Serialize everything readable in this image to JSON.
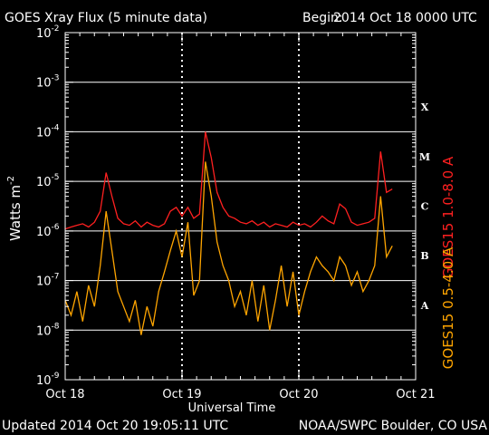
{
  "header": {
    "title": "GOES Xray Flux (5 minute data)",
    "begin_label": "Begin:",
    "begin_value": "2014 Oct 18 0000 UTC"
  },
  "footer": {
    "updated": "Updated 2014 Oct 20 19:05:11 UTC",
    "credit": "NOAA/SWPC Boulder, CO USA"
  },
  "chart_data": {
    "type": "line",
    "title": "GOES Xray Flux (5 minute data)",
    "xlabel": "Universal Time",
    "ylabel": "Watts m",
    "ylabel_sup": "-2",
    "xlim": [
      0,
      3
    ],
    "x_unit": "days since 2014 Oct 18 00:00 UTC",
    "ylim": [
      1e-09,
      0.01
    ],
    "yscale": "log",
    "y_ticks": [
      {
        "base": "10",
        "exp": "-2",
        "value": 0.01
      },
      {
        "base": "10",
        "exp": "-3",
        "value": 0.001
      },
      {
        "base": "10",
        "exp": "-4",
        "value": 0.0001
      },
      {
        "base": "10",
        "exp": "-5",
        "value": 1e-05
      },
      {
        "base": "10",
        "exp": "-6",
        "value": 1e-06
      },
      {
        "base": "10",
        "exp": "-7",
        "value": 1e-07
      },
      {
        "base": "10",
        "exp": "-8",
        "value": 1e-08
      },
      {
        "base": "10",
        "exp": "-9",
        "value": 1e-09
      }
    ],
    "x_ticks": [
      {
        "label": "Oct 18",
        "value": 0
      },
      {
        "label": "Oct 19",
        "value": 1
      },
      {
        "label": "Oct 20",
        "value": 2
      },
      {
        "label": "Oct 21",
        "value": 3
      }
    ],
    "flare_classes": [
      {
        "label": "X",
        "value": 0.000316
      },
      {
        "label": "M",
        "value": 3.16e-05
      },
      {
        "label": "C",
        "value": 3.16e-06
      },
      {
        "label": "B",
        "value": 3.16e-07
      },
      {
        "label": "A",
        "value": 3.16e-08
      }
    ],
    "grid_y": [
      0.001,
      0.0001,
      1e-05,
      1e-06,
      1e-07,
      1e-08
    ],
    "grid_x_dotted": [
      1,
      2
    ],
    "series": [
      {
        "name": "GOES15 1.0-8.0 A",
        "color": "#ff2020",
        "x": [
          0,
          0.05,
          0.1,
          0.15,
          0.2,
          0.25,
          0.3,
          0.35,
          0.4,
          0.45,
          0.5,
          0.55,
          0.6,
          0.65,
          0.7,
          0.75,
          0.8,
          0.85,
          0.9,
          0.95,
          1.0,
          1.05,
          1.1,
          1.15,
          1.2,
          1.25,
          1.3,
          1.35,
          1.4,
          1.45,
          1.5,
          1.55,
          1.6,
          1.65,
          1.7,
          1.75,
          1.8,
          1.85,
          1.9,
          1.95,
          2.0,
          2.05,
          2.1,
          2.15,
          2.2,
          2.25,
          2.3,
          2.35,
          2.4,
          2.45,
          2.5,
          2.55,
          2.6,
          2.65,
          2.7,
          2.75,
          2.8
        ],
        "values": [
          1.1e-06,
          1.2e-06,
          1.3e-06,
          1.4e-06,
          1.2e-06,
          1.5e-06,
          2.5e-06,
          1.5e-05,
          5e-06,
          1.8e-06,
          1.4e-06,
          1.3e-06,
          1.6e-06,
          1.2e-06,
          1.5e-06,
          1.3e-06,
          1.2e-06,
          1.4e-06,
          2.5e-06,
          3e-06,
          2e-06,
          3e-06,
          1.8e-06,
          2.2e-06,
          0.0001,
          3e-05,
          6e-06,
          3e-06,
          2e-06,
          1.8e-06,
          1.5e-06,
          1.4e-06,
          1.6e-06,
          1.3e-06,
          1.5e-06,
          1.2e-06,
          1.4e-06,
          1.3e-06,
          1.2e-06,
          1.5e-06,
          1.3e-06,
          1.4e-06,
          1.2e-06,
          1.5e-06,
          2e-06,
          1.6e-06,
          1.4e-06,
          3.5e-06,
          2.8e-06,
          1.5e-06,
          1.3e-06,
          1.4e-06,
          1.5e-06,
          1.8e-06,
          4e-05,
          6e-06,
          7e-06
        ]
      },
      {
        "name": "GOES15 0.5-4.0 A",
        "color": "#ffa500",
        "x": [
          0,
          0.05,
          0.1,
          0.15,
          0.2,
          0.25,
          0.3,
          0.35,
          0.4,
          0.45,
          0.5,
          0.55,
          0.6,
          0.65,
          0.7,
          0.75,
          0.8,
          0.85,
          0.9,
          0.95,
          1.0,
          1.05,
          1.1,
          1.15,
          1.2,
          1.25,
          1.3,
          1.35,
          1.4,
          1.45,
          1.5,
          1.55,
          1.6,
          1.65,
          1.7,
          1.75,
          1.8,
          1.85,
          1.9,
          1.95,
          2.0,
          2.05,
          2.1,
          2.15,
          2.2,
          2.25,
          2.3,
          2.35,
          2.4,
          2.45,
          2.5,
          2.55,
          2.6,
          2.65,
          2.7,
          2.75,
          2.8
        ],
        "values": [
          4e-08,
          2e-08,
          6e-08,
          1.5e-08,
          8e-08,
          3e-08,
          2e-07,
          2.5e-06,
          4e-07,
          6e-08,
          3e-08,
          1.5e-08,
          4e-08,
          8e-09,
          3e-08,
          1.2e-08,
          6e-08,
          1.5e-07,
          4e-07,
          1e-06,
          3e-07,
          1.5e-06,
          5e-08,
          1e-07,
          2.5e-05,
          5e-06,
          6e-07,
          2e-07,
          1e-07,
          3e-08,
          6e-08,
          2e-08,
          1e-07,
          1.5e-08,
          8e-08,
          1e-08,
          4e-08,
          2e-07,
          3e-08,
          1.5e-07,
          2e-08,
          6e-08,
          1.5e-07,
          3e-07,
          2e-07,
          1.5e-07,
          1e-07,
          3e-07,
          2e-07,
          8e-08,
          1.5e-07,
          6e-08,
          1e-07,
          2e-07,
          5e-06,
          3e-07,
          5e-07
        ]
      }
    ]
  }
}
